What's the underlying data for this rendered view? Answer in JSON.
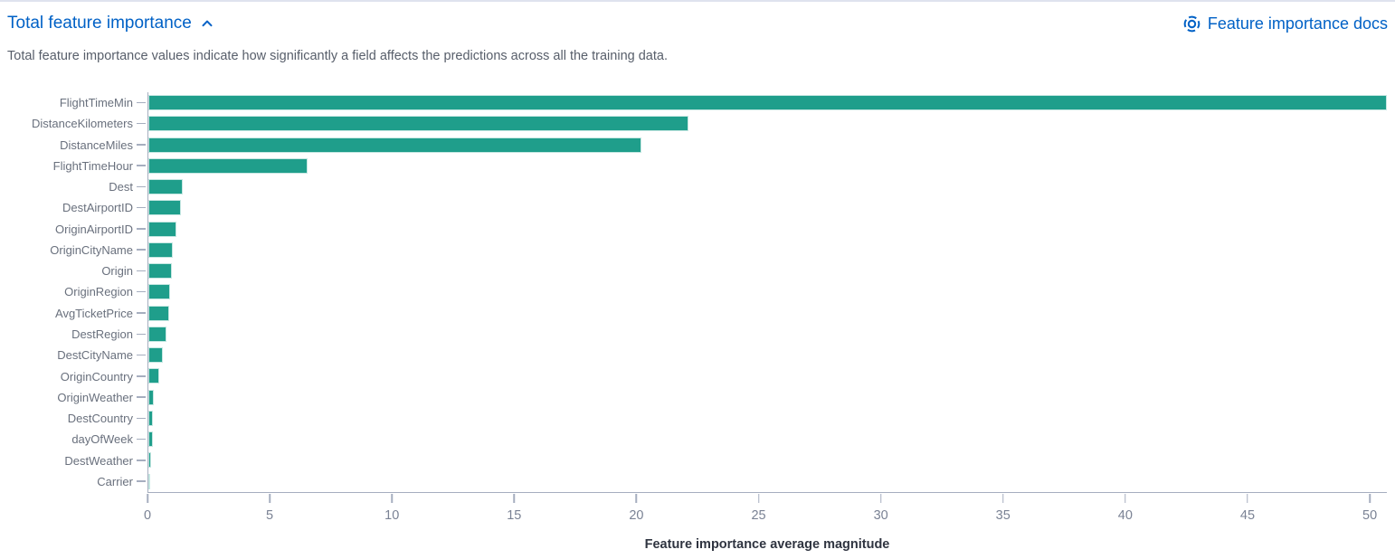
{
  "header": {
    "title": "Total feature importance",
    "docs_link": "Feature importance docs",
    "subtitle": "Total feature importance values indicate how significantly a field affects the predictions across all the training data."
  },
  "icons": {
    "collapse": "chevron-up-icon",
    "docs": "documentation-lifebuoy-icon"
  },
  "colors": {
    "accent_blue": "#0061c6",
    "bar_teal": "#1f9e8b",
    "axis_line": "#a6aebf",
    "y_label_gray": "#69707d",
    "x_label_gray": "#7a8294",
    "axis_title_dark": "#2f3440"
  },
  "chart_data": {
    "type": "bar",
    "orientation": "horizontal",
    "title": "Total feature importance",
    "xlabel": "Feature importance average magnitude",
    "ylabel": "",
    "categories": [
      "FlightTimeMin",
      "DistanceKilometers",
      "DistanceMiles",
      "FlightTimeHour",
      "Dest",
      "DestAirportID",
      "OriginAirportID",
      "OriginCityName",
      "Origin",
      "OriginRegion",
      "AvgTicketPrice",
      "DestRegion",
      "DestCityName",
      "OriginCountry",
      "OriginWeather",
      "DestCountry",
      "dayOfWeek",
      "DestWeather",
      "Carrier"
    ],
    "values": [
      50.7,
      22.1,
      20.2,
      6.5,
      1.4,
      1.35,
      1.15,
      1.0,
      0.95,
      0.9,
      0.85,
      0.75,
      0.6,
      0.45,
      0.22,
      0.19,
      0.18,
      0.12,
      0.05
    ],
    "x_ticks": [
      0,
      5,
      10,
      15,
      20,
      25,
      30,
      35,
      40,
      45,
      50
    ],
    "xlim": [
      0,
      50.7
    ],
    "grid": false,
    "legend": false,
    "bar_color": "#1f9e8b"
  }
}
